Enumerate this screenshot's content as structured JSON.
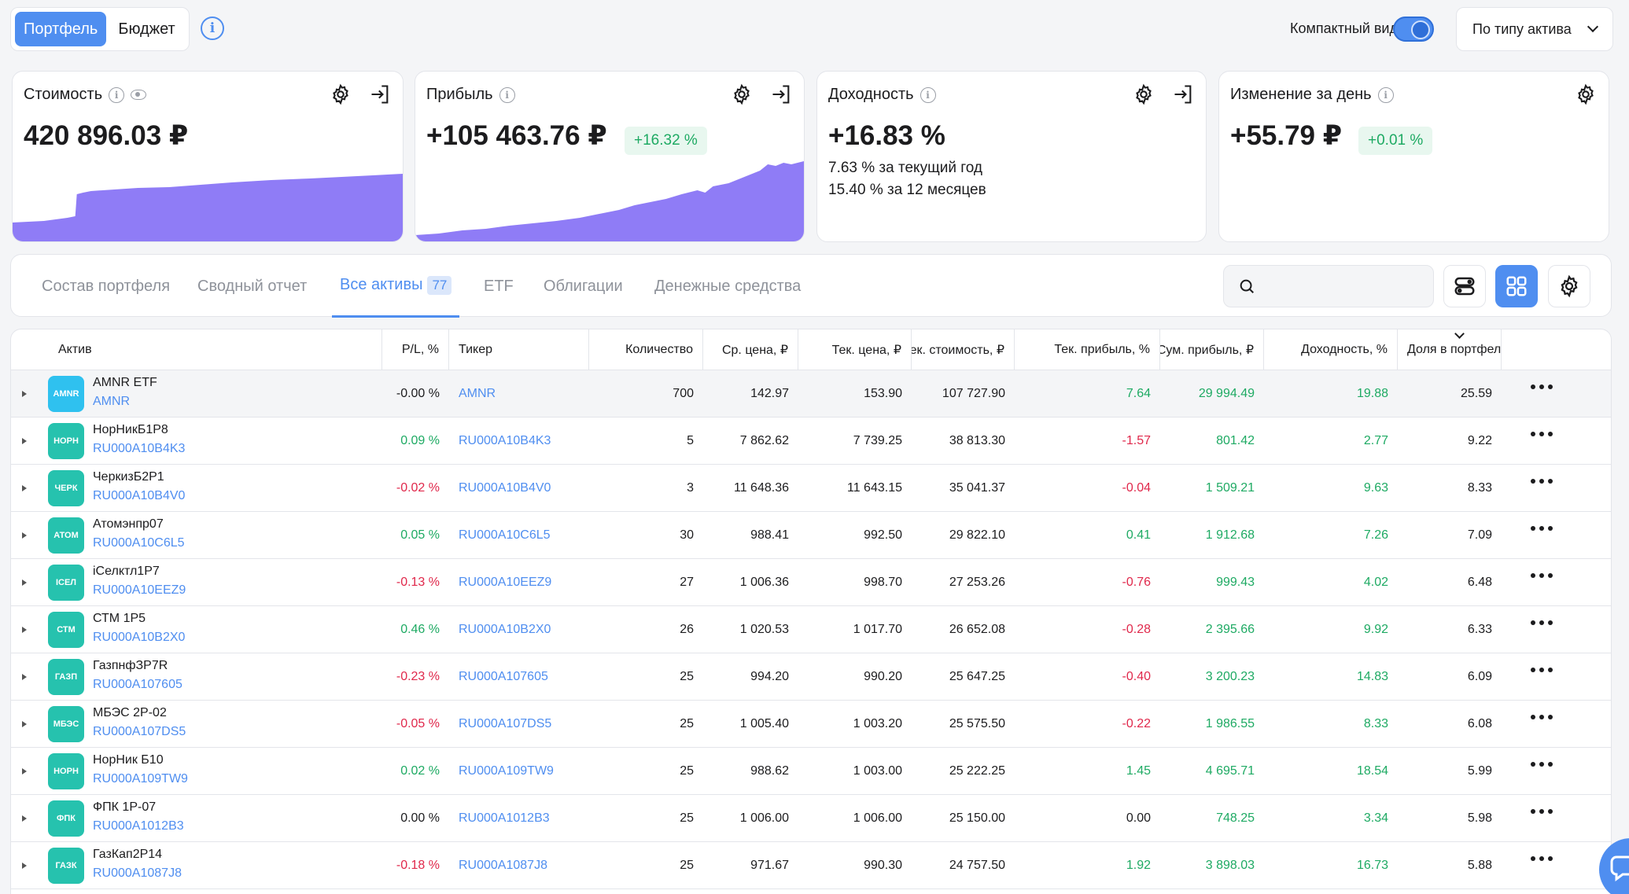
{
  "top": {
    "seg_portfolio": "Портфель",
    "seg_budget": "Бюджет",
    "compact_label": "Компактный вид",
    "group_select": "По типу актива"
  },
  "cards": [
    {
      "title": "Стоимость",
      "value": "420 896.03 ₽"
    },
    {
      "title": "Прибыль",
      "value": "+105 463.76 ₽",
      "badge": "+16.32 %"
    },
    {
      "title": "Доходность",
      "value": "+16.83 %",
      "sub1": "7.63 % за текущий год",
      "sub2": "15.40 % за 12 месяцев"
    },
    {
      "title": "Изменение за день",
      "value": "+55.79 ₽",
      "badge": "+0.01 %"
    }
  ],
  "tabs": [
    {
      "label": "Состав портфеля"
    },
    {
      "label": "Сводный отчет"
    },
    {
      "label": "Все активы",
      "count": "77"
    },
    {
      "label": "ETF"
    },
    {
      "label": "Облигации"
    },
    {
      "label": "Денежные средства"
    }
  ],
  "columns": [
    "Актив",
    "P/L, %",
    "Тикер",
    "Количество",
    "Ср. цена, ₽",
    "Тек. цена, ₽",
    "Тек. стоимость, ₽",
    "Тек. прибыль, %",
    "Сум. прибыль, ₽",
    "Доходность, %",
    "Доля в портфеле, %"
  ],
  "rows": [
    {
      "logo": "AMNR",
      "name": "AMNR ETF",
      "code": "AMNR",
      "pl": "-0.00 %",
      "ticker": "AMNR",
      "qty": "700",
      "avg": "142.97",
      "cur": "153.90",
      "value": "107 727.90",
      "profit_pct": "7.64",
      "profit_sum": "29 994.49",
      "yield": "19.88",
      "share": "25.59",
      "pl_sign": "zero",
      "pp_sign": "pos"
    },
    {
      "logo": "НОРН",
      "name": "НорНикБ1Р8",
      "code": "RU000A10B4K3",
      "pl": "0.09 %",
      "ticker": "RU000A10B4K3",
      "qty": "5",
      "avg": "7 862.62",
      "cur": "7 739.25",
      "value": "38 813.30",
      "profit_pct": "-1.57",
      "profit_sum": "801.42",
      "yield": "2.77",
      "share": "9.22",
      "pl_sign": "pos",
      "pp_sign": "neg"
    },
    {
      "logo": "ЧЕРК",
      "name": "ЧеркизБ2Р1",
      "code": "RU000A10B4V0",
      "pl": "-0.02 %",
      "ticker": "RU000A10B4V0",
      "qty": "3",
      "avg": "11 648.36",
      "cur": "11 643.15",
      "value": "35 041.37",
      "profit_pct": "-0.04",
      "profit_sum": "1 509.21",
      "yield": "9.63",
      "share": "8.33",
      "pl_sign": "neg",
      "pp_sign": "neg"
    },
    {
      "logo": "АТОМ",
      "name": "Атомэнпр07",
      "code": "RU000A10C6L5",
      "pl": "0.05 %",
      "ticker": "RU000A10C6L5",
      "qty": "30",
      "avg": "988.41",
      "cur": "992.50",
      "value": "29 822.10",
      "profit_pct": "0.41",
      "profit_sum": "1 912.68",
      "yield": "7.26",
      "share": "7.09",
      "pl_sign": "pos",
      "pp_sign": "pos"
    },
    {
      "logo": "ICЕЛ",
      "name": "iСелктл1Р7",
      "code": "RU000A10EEZ9",
      "pl": "-0.13 %",
      "ticker": "RU000A10EEZ9",
      "qty": "27",
      "avg": "1 006.36",
      "cur": "998.70",
      "value": "27 253.26",
      "profit_pct": "-0.76",
      "profit_sum": "999.43",
      "yield": "4.02",
      "share": "6.48",
      "pl_sign": "neg",
      "pp_sign": "neg"
    },
    {
      "logo": "СТМ",
      "name": "СТМ 1Р5",
      "code": "RU000A10B2X0",
      "pl": "0.46 %",
      "ticker": "RU000A10B2X0",
      "qty": "26",
      "avg": "1 020.53",
      "cur": "1 017.70",
      "value": "26 652.08",
      "profit_pct": "-0.28",
      "profit_sum": "2 395.66",
      "yield": "9.92",
      "share": "6.33",
      "pl_sign": "pos",
      "pp_sign": "neg"
    },
    {
      "logo": "ГАЗП",
      "name": "ГазпнфЗР7R",
      "code": "RU000A107605",
      "pl": "-0.23 %",
      "ticker": "RU000A107605",
      "qty": "25",
      "avg": "994.20",
      "cur": "990.20",
      "value": "25 647.25",
      "profit_pct": "-0.40",
      "profit_sum": "3 200.23",
      "yield": "14.83",
      "share": "6.09",
      "pl_sign": "neg",
      "pp_sign": "neg"
    },
    {
      "logo": "МБЭС",
      "name": "МБЭС 2Р-02",
      "code": "RU000A107DS5",
      "pl": "-0.05 %",
      "ticker": "RU000A107DS5",
      "qty": "25",
      "avg": "1 005.40",
      "cur": "1 003.20",
      "value": "25 575.50",
      "profit_pct": "-0.22",
      "profit_sum": "1 986.55",
      "yield": "8.33",
      "share": "6.08",
      "pl_sign": "neg",
      "pp_sign": "neg"
    },
    {
      "logo": "НОРН",
      "name": "НорНик Б10",
      "code": "RU000A109TW9",
      "pl": "0.02 %",
      "ticker": "RU000A109TW9",
      "qty": "25",
      "avg": "988.62",
      "cur": "1 003.00",
      "value": "25 222.25",
      "profit_pct": "1.45",
      "profit_sum": "4 695.71",
      "yield": "18.54",
      "share": "5.99",
      "pl_sign": "pos",
      "pp_sign": "pos"
    },
    {
      "logo": "ФПК",
      "name": "ФПК 1Р-07",
      "code": "RU000A1012B3",
      "pl": "0.00 %",
      "ticker": "RU000A1012B3",
      "qty": "25",
      "avg": "1 006.00",
      "cur": "1 006.00",
      "value": "25 150.00",
      "profit_pct": "0.00",
      "profit_sum": "748.25",
      "yield": "3.34",
      "share": "5.98",
      "pl_sign": "zero",
      "pp_sign": "zero"
    },
    {
      "logo": "ГАЗК",
      "name": "ГазКап2Р14",
      "code": "RU000A1087J8",
      "pl": "-0.18 %",
      "ticker": "RU000A1087J8",
      "qty": "25",
      "avg": "971.67",
      "cur": "990.30",
      "value": "24 757.50",
      "profit_pct": "1.92",
      "profit_sum": "3 898.03",
      "yield": "16.73",
      "share": "5.88",
      "pl_sign": "neg",
      "pp_sign": "pos"
    }
  ],
  "colors": {
    "accent": "#4f8ef0",
    "positive": "#1eaa63",
    "negative": "#e0284b",
    "spark_fill": "#8f7cf6"
  }
}
